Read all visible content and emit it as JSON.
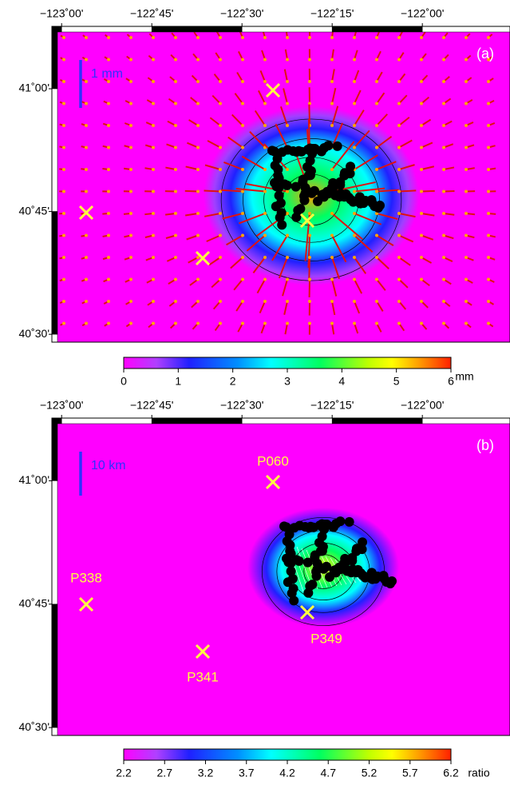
{
  "panels": [
    {
      "label": "(a)",
      "scale_label": "1 mm",
      "xlim": [
        -123.027,
        -121.757
      ],
      "ylim": [
        40.484,
        41.127
      ],
      "xticks": [
        {
          "value": -123,
          "label": "−123˚00'"
        },
        {
          "value": -122.75,
          "label": "−122˚45'"
        },
        {
          "value": -122.5,
          "label": "−122˚30'"
        },
        {
          "value": -122.25,
          "label": "−122˚15'"
        },
        {
          "value": -122,
          "label": "−122˚00'"
        }
      ],
      "yticks": [
        {
          "value": 41,
          "label": "41˚00'"
        },
        {
          "value": 40.75,
          "label": "40˚45'"
        },
        {
          "value": 40.5,
          "label": "40˚30'"
        }
      ],
      "colorbar": {
        "lim": [
          0,
          6
        ],
        "ticks": [
          0,
          1,
          2,
          3,
          4,
          5,
          6
        ],
        "unit": "mm"
      },
      "stations": []
    },
    {
      "label": "(b)",
      "scale_label": "10 km",
      "xlim": [
        -123.027,
        -121.757
      ],
      "ylim": [
        40.484,
        41.127
      ],
      "xticks": [
        {
          "value": -123,
          "label": "−123˚00'"
        },
        {
          "value": -122.75,
          "label": "−122˚45'"
        },
        {
          "value": -122.5,
          "label": "−122˚30'"
        },
        {
          "value": -122.25,
          "label": "−122˚15'"
        },
        {
          "value": -122,
          "label": "−122˚00'"
        }
      ],
      "yticks": [
        {
          "value": 41,
          "label": "41˚00'"
        },
        {
          "value": 40.75,
          "label": "40˚45'"
        },
        {
          "value": 40.5,
          "label": "40˚30'"
        }
      ],
      "colorbar": {
        "lim": [
          2.2,
          6.2
        ],
        "ticks": [
          2.2,
          2.7,
          3.2,
          3.7,
          4.2,
          4.7,
          5.2,
          5.7,
          6.2
        ],
        "unit": "ratio"
      },
      "stations": [
        "P060",
        "P338",
        "P341",
        "P349"
      ]
    }
  ]
}
